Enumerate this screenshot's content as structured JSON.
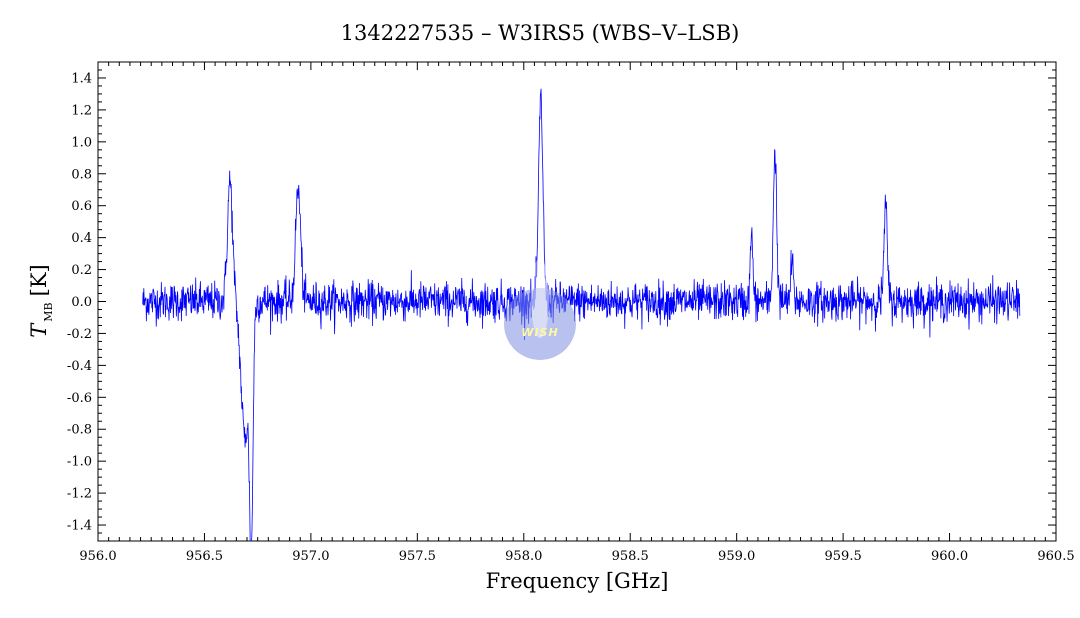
{
  "chart_data": {
    "type": "line",
    "title": "1342227535 – W3IRS5 (WBS–V–LSB)",
    "xlabel": "Frequency [GHz]",
    "ylabel_main": "T",
    "ylabel_sub": "MB",
    "ylabel_unit": "[K]",
    "xlim": [
      956.0,
      960.5
    ],
    "ylim": [
      -1.5,
      1.5
    ],
    "x_ticks": [
      "956.0",
      "956.5",
      "957.0",
      "957.5",
      "958.0",
      "958.5",
      "959.0",
      "959.5",
      "960.0",
      "960.5"
    ],
    "y_ticks": [
      "-1.4",
      "-1.2",
      "-1.0",
      "-0.8",
      "-0.6",
      "-0.4",
      "-0.2",
      "0.0",
      "0.2",
      "0.4",
      "0.6",
      "0.8",
      "1.0",
      "1.2",
      "1.4"
    ],
    "grid": false,
    "series": [
      {
        "color": "#0000ff",
        "x_range": [
          956.21,
          960.33
        ],
        "noise_rms": 0.06,
        "baseline": 0.0,
        "features": [
          {
            "x": 956.62,
            "peak": 0.75,
            "width": 0.012
          },
          {
            "x": 956.94,
            "peak": 0.7,
            "width": 0.012
          },
          {
            "x": 958.08,
            "peak": 1.27,
            "width": 0.01
          },
          {
            "x": 959.18,
            "peak": 0.93,
            "width": 0.008
          },
          {
            "x": 959.7,
            "peak": 0.58,
            "width": 0.008
          },
          {
            "x": 959.07,
            "peak": 0.42,
            "width": 0.006
          },
          {
            "x": 959.26,
            "peak": 0.25,
            "width": 0.006
          },
          {
            "x": 956.69,
            "peak": -0.85,
            "width": 0.018
          },
          {
            "x": 956.72,
            "peak": -1.4,
            "width": 0.008
          }
        ]
      }
    ]
  },
  "logo": {
    "text": "WISH",
    "color": "#7f8fe0"
  }
}
